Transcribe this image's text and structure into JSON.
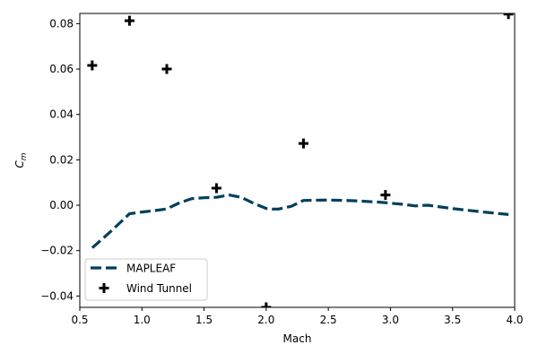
{
  "chart_data": {
    "type": "line",
    "xlabel": "Mach",
    "ylabel": "C_m",
    "ylabel_main": "C",
    "ylabel_sub": "m",
    "xlim": [
      0.5,
      4.0
    ],
    "ylim": [
      -0.045,
      0.0845
    ],
    "x_ticks": [
      0.5,
      1.0,
      1.5,
      2.0,
      2.5,
      3.0,
      3.5,
      4.0
    ],
    "x_tick_labels": [
      "0.5",
      "1.0",
      "1.5",
      "2.0",
      "2.5",
      "3.0",
      "3.5",
      "4.0"
    ],
    "y_ticks": [
      -0.04,
      -0.02,
      0.0,
      0.02,
      0.04,
      0.06,
      0.08
    ],
    "y_tick_labels": [
      "−0.04",
      "−0.02",
      "0.00",
      "0.02",
      "0.04",
      "0.06",
      "0.08"
    ],
    "grid": false,
    "legend_position": "lower-left",
    "series": [
      {
        "name": "MAPLEAF",
        "style": "dashed-line",
        "color": "#003f5c",
        "x": [
          0.6,
          0.75,
          0.9,
          1.0,
          1.1,
          1.2,
          1.3,
          1.4,
          1.5,
          1.6,
          1.7,
          1.8,
          1.9,
          2.0,
          2.05,
          2.1,
          2.2,
          2.3,
          2.5,
          2.7,
          2.9,
          3.1,
          3.2,
          3.3,
          3.5,
          3.7,
          3.95
        ],
        "y": [
          -0.0188,
          -0.0115,
          -0.0038,
          -0.003,
          -0.0024,
          -0.0016,
          0.001,
          0.0029,
          0.0033,
          0.0035,
          0.0045,
          0.0035,
          0.0008,
          -0.0014,
          -0.0017,
          -0.0017,
          -0.0005,
          0.0021,
          0.0023,
          0.002,
          0.0014,
          0.0004,
          -0.0003,
          0.0,
          -0.0015,
          -0.0027,
          -0.0041
        ]
      },
      {
        "name": "Wind Tunnel",
        "style": "plus-markers",
        "color": "#000000",
        "x": [
          0.6,
          0.9,
          1.2,
          1.6,
          2.0,
          2.3,
          2.96,
          3.95
        ],
        "y": [
          0.0616,
          0.0813,
          0.06,
          0.0075,
          -0.045,
          0.0272,
          0.0045,
          0.0842
        ]
      }
    ]
  }
}
